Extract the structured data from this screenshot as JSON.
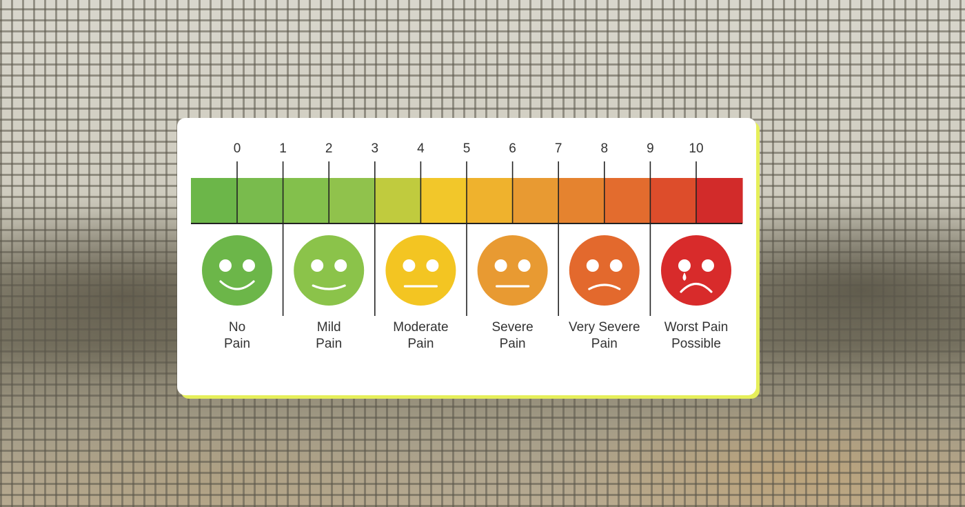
{
  "scale": {
    "ticks": [
      "0",
      "1",
      "2",
      "3",
      "4",
      "5",
      "6",
      "7",
      "8",
      "9",
      "10"
    ],
    "segment_colors": [
      "#6cb649",
      "#79bb4d",
      "#83c04c",
      "#90c24c",
      "#c0cb3e",
      "#f2c72a",
      "#efb22d",
      "#e89a32",
      "#e5832f",
      "#e36c2e",
      "#dd4d2b",
      "#d22b2a"
    ]
  },
  "faces": [
    {
      "level": 0,
      "line1": "No",
      "line2": "Pain",
      "color": "#6cb649",
      "mouth": "smile",
      "icon": "big-smile-face-icon"
    },
    {
      "level": 2,
      "line1": "Mild",
      "line2": "Pain",
      "color": "#8bc34a",
      "mouth": "slight-smile",
      "icon": "smile-face-icon"
    },
    {
      "level": 4,
      "line1": "Moderate",
      "line2": "Pain",
      "color": "#f3c522",
      "mouth": "flat",
      "icon": "neutral-face-icon"
    },
    {
      "level": 6,
      "line1": "Severe",
      "line2": "Pain",
      "color": "#e89a32",
      "mouth": "flat",
      "icon": "neutral-face-icon"
    },
    {
      "level": 8,
      "line1": "Very Severe",
      "line2": "Pain",
      "color": "#e3692d",
      "mouth": "frown",
      "icon": "frown-face-icon"
    },
    {
      "level": 10,
      "line1": "Worst Pain",
      "line2": "Possible",
      "color": "#d82b2b",
      "mouth": "big-frown",
      "icon": "crying-face-icon"
    }
  ]
}
